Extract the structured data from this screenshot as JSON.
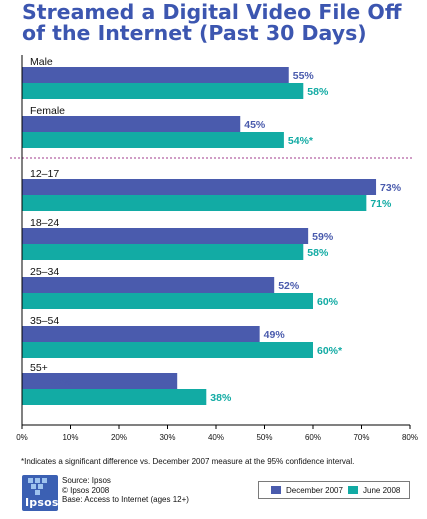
{
  "chart_data": {
    "type": "bar",
    "orientation": "horizontal",
    "title": "Streamed a Digital Video File Off of the Internet (Past 30 Days)",
    "categories": [
      "Male",
      "Female",
      "12–17",
      "18–24",
      "25–34",
      "35–54",
      "55+"
    ],
    "series": [
      {
        "name": "December 2007",
        "color": "#4a5bad",
        "values": [
          55,
          45,
          73,
          59,
          52,
          49,
          32
        ],
        "labels": [
          "55%",
          "45%",
          "73%",
          "59%",
          "52%",
          "49%",
          "32%"
        ]
      },
      {
        "name": "June 2008",
        "color": "#12aba4",
        "values": [
          58,
          54,
          71,
          58,
          60,
          60,
          38
        ],
        "labels": [
          "58%",
          "54%*",
          "71%",
          "58%",
          "60%",
          "60%*",
          "38%"
        ]
      }
    ],
    "xlim": [
      0,
      80
    ],
    "x_ticks": [
      "0%",
      "10%",
      "20%",
      "30%",
      "40%",
      "50%",
      "60%",
      "70%",
      "80%"
    ],
    "divider_after_category": "Female",
    "legend_position": "bottom-right",
    "grid": false
  },
  "footnote": "*Indicates a significant difference vs. December 2007 measure at the 95% confidence interval.",
  "logo_text": "Ipsos",
  "source_lines": [
    "Source: Ipsos",
    "© Ipsos 2008",
    "Base: Access to Internet (ages 12+)"
  ]
}
